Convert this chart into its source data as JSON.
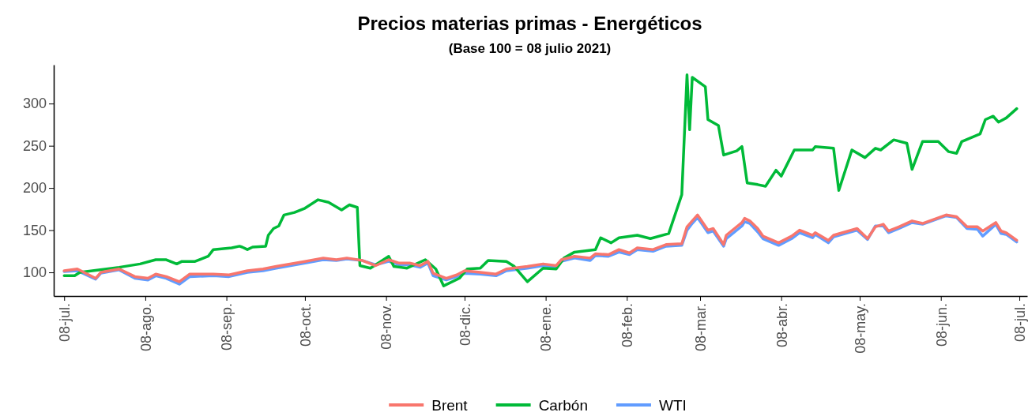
{
  "chart_data": {
    "type": "line",
    "title": "Precios materias primas - Energéticos",
    "subtitle": "(Base 100 = 08 julio 2021)",
    "x": [
      "2021-07-08",
      "2021-07-13",
      "2021-07-20",
      "2021-07-22",
      "2021-07-29",
      "2021-08-04",
      "2021-08-09",
      "2021-08-12",
      "2021-08-16",
      "2021-08-21",
      "2021-08-25",
      "2021-09-03",
      "2021-09-09",
      "2021-09-16",
      "2021-09-22",
      "2021-09-27",
      "2021-10-08",
      "2021-10-15",
      "2021-10-20",
      "2021-10-24",
      "2021-10-30",
      "2021-11-04",
      "2021-11-09",
      "2021-11-13",
      "2021-11-17",
      "2021-11-21",
      "2021-11-24",
      "2021-11-26",
      "2021-12-01",
      "2021-12-05",
      "2021-12-08",
      "2021-12-14",
      "2021-12-20",
      "2021-12-24",
      "2022-01-01",
      "2022-01-07",
      "2022-01-12",
      "2022-01-14",
      "2022-01-19",
      "2022-01-25",
      "2022-01-27",
      "2022-02-01",
      "2022-02-05",
      "2022-02-09",
      "2022-02-12",
      "2022-02-18",
      "2022-02-23",
      "2022-03-01",
      "2022-03-03",
      "2022-03-05",
      "2022-03-07",
      "2022-03-11",
      "2022-03-13",
      "2022-03-17",
      "2022-03-18",
      "2022-03-24",
      "2022-03-25",
      "2022-03-27",
      "2022-03-30",
      "2022-04-01",
      "2022-04-07",
      "2022-04-12",
      "2022-04-15",
      "2022-04-20",
      "2022-04-21",
      "2022-04-26",
      "2022-04-28",
      "2022-05-07",
      "2022-05-11",
      "2022-05-14",
      "2022-05-17",
      "2022-05-19",
      "2022-05-23",
      "2022-05-28",
      "2022-06-01",
      "2022-06-10",
      "2022-06-14",
      "2022-06-18",
      "2022-06-22",
      "2022-06-24",
      "2022-06-29",
      "2022-07-01",
      "2022-07-03",
      "2022-07-07"
    ],
    "series": [
      {
        "name": "Brent",
        "color": "#f8766d",
        "values": [
          102,
          104,
          93,
          100,
          104,
          95,
          93,
          98,
          95,
          89,
          98,
          98,
          97,
          102,
          104,
          107,
          113,
          117,
          115,
          117,
          114,
          108,
          115,
          111,
          111,
          108,
          113,
          99,
          93,
          97,
          102,
          100,
          98,
          104,
          107,
          110,
          108,
          115,
          119,
          117,
          122,
          121,
          127,
          123,
          129,
          127,
          133,
          134,
          154,
          161,
          168,
          150,
          152,
          133,
          144,
          159,
          164,
          161,
          152,
          143,
          135,
          143,
          150,
          144,
          147,
          138,
          144,
          152,
          140,
          154,
          157,
          149,
          154,
          161,
          158,
          168,
          166,
          154,
          154,
          149,
          159,
          149,
          147,
          138
        ]
      },
      {
        "name": "Carbón",
        "color": "#00ba38",
        "x": [
          "2021-07-08",
          "2021-07-12",
          "2021-07-14",
          "2021-07-29",
          "2021-08-06",
          "2021-08-12",
          "2021-08-16",
          "2021-08-20",
          "2021-08-22",
          "2021-08-27",
          "2021-09-01",
          "2021-09-03",
          "2021-09-10",
          "2021-09-13",
          "2021-09-14",
          "2021-09-16",
          "2021-09-18",
          "2021-09-23",
          "2021-09-24",
          "2021-09-26",
          "2021-09-28",
          "2021-09-30",
          "2021-10-04",
          "2021-10-08",
          "2021-10-13",
          "2021-10-17",
          "2021-10-22",
          "2021-10-25",
          "2021-10-28",
          "2021-10-29",
          "2021-11-02",
          "2021-11-09",
          "2021-11-11",
          "2021-11-16",
          "2021-11-23",
          "2021-11-27",
          "2021-11-30",
          "2021-12-06",
          "2021-12-09",
          "2021-12-14",
          "2021-12-17",
          "2021-12-24",
          "2021-12-27",
          "2022-01-01",
          "2022-01-07",
          "2022-01-12",
          "2022-01-15",
          "2022-01-19",
          "2022-01-27",
          "2022-01-29",
          "2022-02-02",
          "2022-02-05",
          "2022-02-12",
          "2022-02-17",
          "2022-02-24",
          "2022-03-01",
          "2022-03-03",
          "2022-03-04",
          "2022-03-05",
          "2022-03-10",
          "2022-03-11",
          "2022-03-15",
          "2022-03-17",
          "2022-03-22",
          "2022-03-24",
          "2022-03-26",
          "2022-03-30",
          "2022-04-02",
          "2022-04-06",
          "2022-04-08",
          "2022-04-13",
          "2022-04-20",
          "2022-04-21",
          "2022-04-28",
          "2022-04-30",
          "2022-05-05",
          "2022-05-10",
          "2022-05-14",
          "2022-05-16",
          "2022-05-21",
          "2022-05-26",
          "2022-05-28",
          "2022-06-01",
          "2022-06-07",
          "2022-06-11",
          "2022-06-14",
          "2022-06-16",
          "2022-06-23",
          "2022-06-25",
          "2022-06-28",
          "2022-06-30",
          "2022-07-03",
          "2022-07-07"
        ],
        "values": [
          96,
          96,
          100,
          106,
          110,
          115,
          115,
          110,
          113,
          113,
          119,
          127,
          129,
          131,
          130,
          127,
          130,
          131,
          144,
          152,
          155,
          168,
          171,
          176,
          186,
          183,
          174,
          180,
          177,
          108,
          105,
          119,
          107,
          105,
          115,
          104,
          84,
          93,
          104,
          105,
          114,
          113,
          107,
          89,
          105,
          104,
          117,
          124,
          127,
          141,
          135,
          141,
          144,
          140,
          146,
          192,
          334,
          269,
          331,
          320,
          281,
          274,
          239,
          244,
          249,
          206,
          204,
          202,
          221,
          214,
          245,
          245,
          249,
          247,
          197,
          245,
          236,
          247,
          245,
          257,
          253,
          222,
          255,
          255,
          243,
          241,
          255,
          264,
          281,
          285,
          278,
          283,
          294
        ]
      },
      {
        "name": "WTI",
        "color": "#619cff",
        "values": [
          101,
          102,
          92,
          99,
          103,
          93,
          91,
          96,
          93,
          86,
          95,
          96,
          95,
          100,
          102,
          105,
          111,
          115,
          114,
          116,
          114,
          109,
          113,
          109,
          109,
          106,
          111,
          96,
          91,
          95,
          99,
          98,
          96,
          102,
          105,
          108,
          106,
          113,
          117,
          114,
          120,
          119,
          124,
          121,
          127,
          125,
          131,
          132,
          150,
          158,
          165,
          147,
          149,
          131,
          140,
          155,
          160,
          158,
          148,
          140,
          132,
          140,
          147,
          141,
          145,
          135,
          142,
          150,
          139,
          155,
          155,
          147,
          152,
          159,
          157,
          167,
          165,
          152,
          151,
          143,
          157,
          146,
          145,
          136
        ]
      }
    ],
    "xlim": [
      "2021-07-04",
      "2022-07-11"
    ],
    "xticks": [
      {
        "value": "2021-07-08",
        "label": "08-jul."
      },
      {
        "value": "2021-08-08",
        "label": "08-ago."
      },
      {
        "value": "2021-09-08",
        "label": "08-sep."
      },
      {
        "value": "2021-10-08",
        "label": "08-oct."
      },
      {
        "value": "2021-11-08",
        "label": "08-nov."
      },
      {
        "value": "2021-12-08",
        "label": "08-dic."
      },
      {
        "value": "2022-01-08",
        "label": "08-ene."
      },
      {
        "value": "2022-02-08",
        "label": "08-feb."
      },
      {
        "value": "2022-03-08",
        "label": "08-mar."
      },
      {
        "value": "2022-04-08",
        "label": "08-abr."
      },
      {
        "value": "2022-05-08",
        "label": "08-may."
      },
      {
        "value": "2022-06-08",
        "label": "08-jun."
      },
      {
        "value": "2022-07-08",
        "label": "08-jul."
      }
    ],
    "ylim": [
      72,
      346
    ],
    "yticks": [
      100,
      150,
      200,
      250,
      300
    ],
    "grid": false,
    "legend": "bottom",
    "line_style": "solid"
  }
}
